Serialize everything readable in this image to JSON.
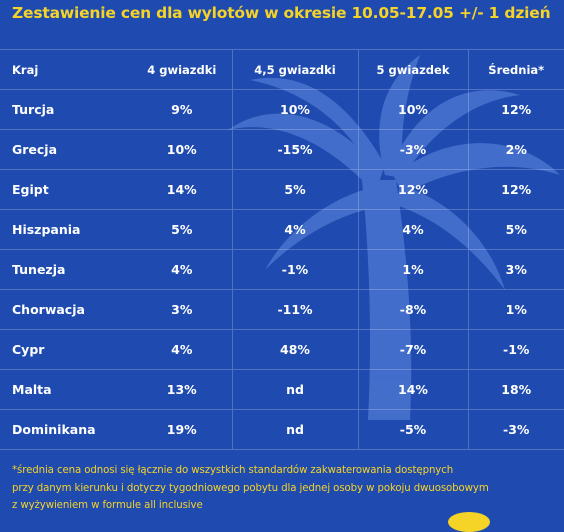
{
  "title": "Zestawienie cen dla wylotów w okresie 10.05-17.05 +/- 1 dzień",
  "table": {
    "headers": [
      "Kraj",
      "4 gwiazdki",
      "4,5 gwiazdki",
      "5 gwiazdek",
      "Średnia*"
    ],
    "rows": [
      [
        "Turcja",
        "9%",
        "10%",
        "10%",
        "12%"
      ],
      [
        "Grecja",
        "10%",
        "-15%",
        "-3%",
        "2%"
      ],
      [
        "Egipt",
        "14%",
        "5%",
        "12%",
        "12%"
      ],
      [
        "Hiszpania",
        "5%",
        "4%",
        "4%",
        "5%"
      ],
      [
        "Tunezja",
        "4%",
        "-1%",
        "1%",
        "3%"
      ],
      [
        "Chorwacja",
        "3%",
        "-11%",
        "-8%",
        "1%"
      ],
      [
        "Cypr",
        "4%",
        "48%",
        "-7%",
        "-1%"
      ],
      [
        "Malta",
        "13%",
        "nd",
        "14%",
        "18%"
      ],
      [
        "Dominikana",
        "19%",
        "nd",
        "-5%",
        "-3%"
      ]
    ]
  },
  "footnote": {
    "line1": "*średnia cena odnosi się łącznie do wszystkich standardów zakwaterowania dostępnych",
    "line2": "przy danym kierunku i dotyczy tygodniowego pobytu dla jednej osoby w pokoju dwuosobowym",
    "line3": "z wyżywieniem w formule all inclusive"
  },
  "colors": {
    "background": "#1f4bb0",
    "accent": "#f5d327",
    "text": "#ffffff",
    "watermark": "#4a74cf"
  },
  "decoration": "palm-tree-icon"
}
